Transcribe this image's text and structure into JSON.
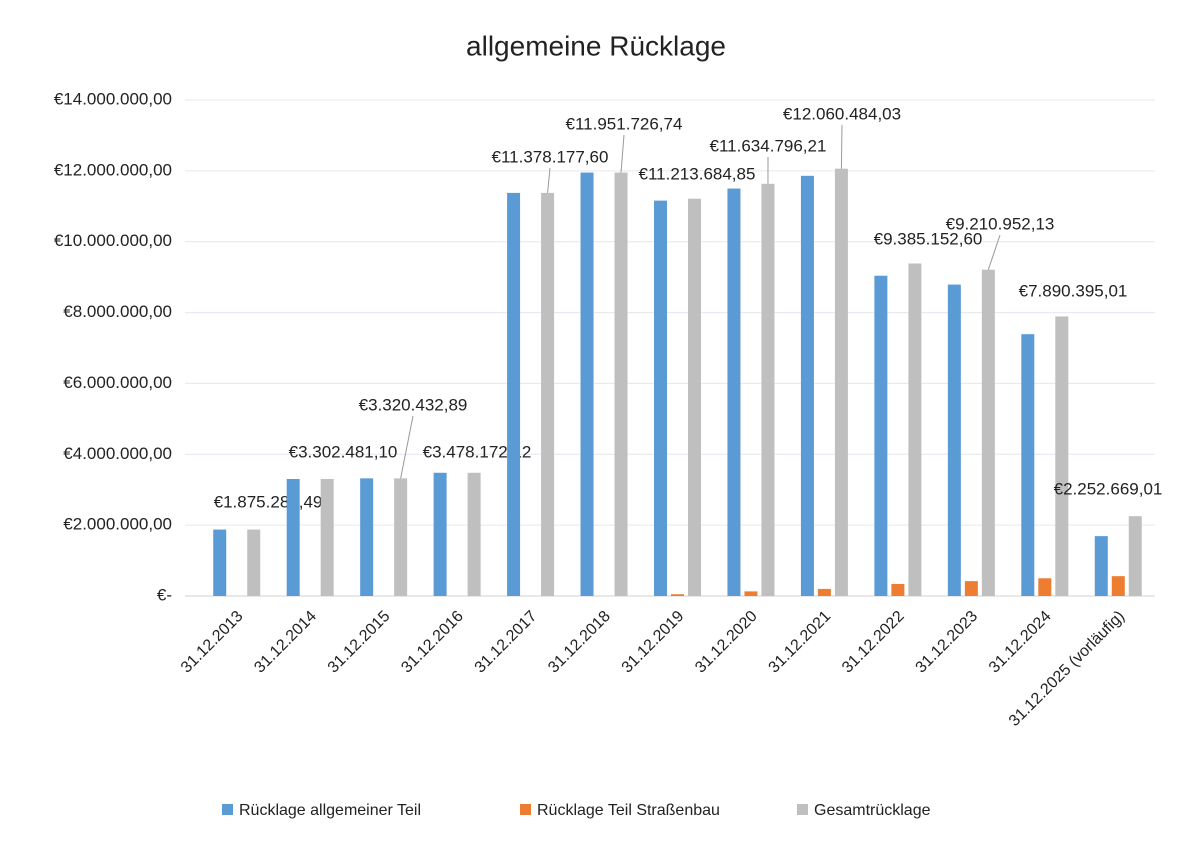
{
  "chart_data": {
    "type": "bar",
    "title": "allgemeine Rücklage",
    "categories": [
      "31.12.2013",
      "31.12.2014",
      "31.12.2015",
      "31.12.2016",
      "31.12.2017",
      "31.12.2018",
      "31.12.2019",
      "31.12.2020",
      "31.12.2021",
      "31.12.2022",
      "31.12.2023",
      "31.12.2024",
      "31.12.2025 (vorläufig)"
    ],
    "series": [
      {
        "name": "Rücklage allgemeiner Teil",
        "color": "#5b9bd5",
        "values": [
          1875282.49,
          3302481.1,
          3320432.89,
          3478172.12,
          11378177.6,
          11951726.74,
          11160000,
          11500000,
          11860000,
          9040000,
          8790000,
          7390000,
          1690000
        ]
      },
      {
        "name": "Rücklage Teil Straßenbau",
        "color": "#ed7d31",
        "values": [
          0,
          0,
          0,
          0,
          0,
          0,
          50000,
          130000,
          200000,
          340000,
          420000,
          500000,
          560000
        ]
      },
      {
        "name": "Gesamtrücklage",
        "color": "#bfbfbf",
        "values": [
          1875282.49,
          3302481.1,
          3320432.89,
          3478172.12,
          11378177.6,
          11951726.74,
          11213684.85,
          11634796.21,
          12060484.03,
          9385152.6,
          9210952.13,
          7890395.01,
          2252669.01
        ],
        "value_labels": [
          "€1.875.282,49",
          "€3.302.481,10",
          "€3.320.432,89",
          "€3.478.172,12",
          "€11.378.177,60",
          "€11.951.726,74",
          "€11.213.684,85",
          "€11.634.796,21",
          "€12.060.484,03",
          "€9.385.152,60",
          "€9.210.952,13",
          "€7.890.395,01",
          "€2.252.669,01"
        ]
      }
    ],
    "ylim": [
      0,
      14000000
    ],
    "yticks": [
      {
        "value": 0,
        "label": "€-"
      },
      {
        "value": 2000000,
        "label": "€2.000.000,00"
      },
      {
        "value": 4000000,
        "label": "€4.000.000,00"
      },
      {
        "value": 6000000,
        "label": "€6.000.000,00"
      },
      {
        "value": 8000000,
        "label": "€8.000.000,00"
      },
      {
        "value": 10000000,
        "label": "€10.000.000,00"
      },
      {
        "value": 12000000,
        "label": "€12.000.000,00"
      },
      {
        "value": 14000000,
        "label": "€14.000.000,00"
      }
    ],
    "grid": true,
    "legend": "bottom"
  }
}
